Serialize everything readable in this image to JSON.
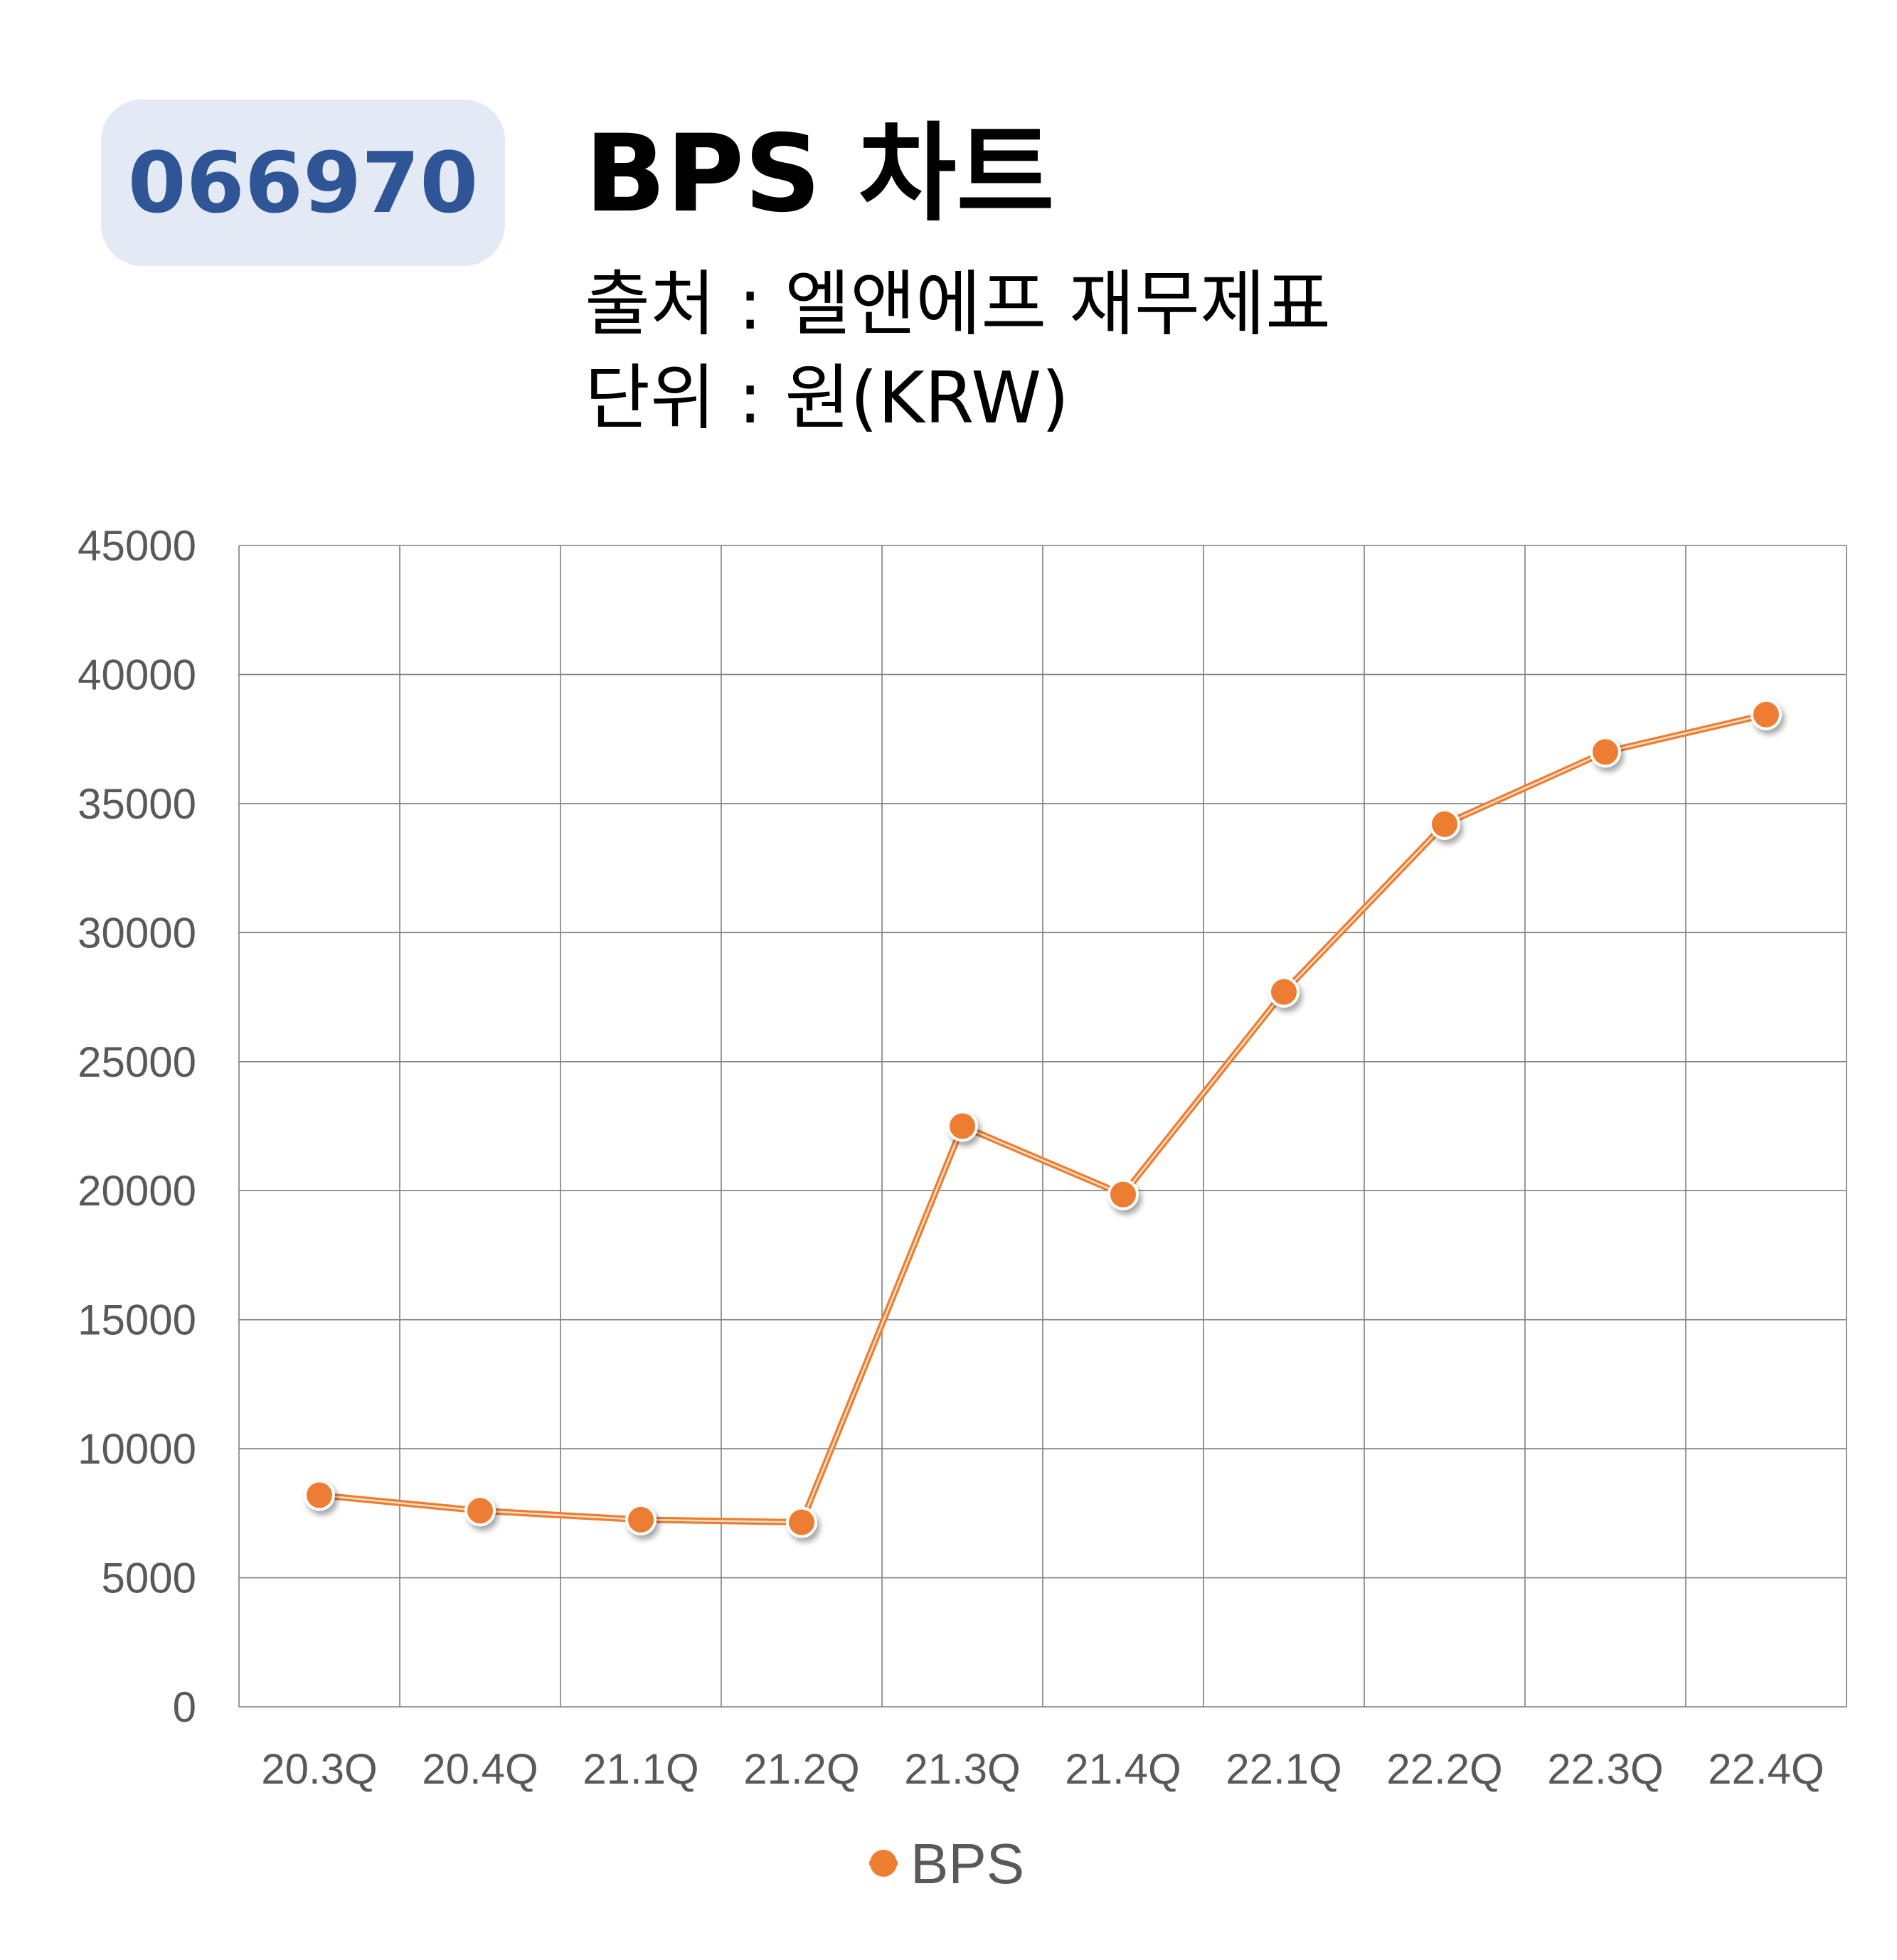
{
  "header": {
    "code": "066970",
    "title": "BPS 차트",
    "source": "출처 : 엘앤에프 재무제표",
    "unit": "단위 : 원(KRW)"
  },
  "colors": {
    "badge_bg": "#e3e9f5",
    "badge_text": "#2f5597",
    "series": "#ed7d31",
    "grid": "#7f7f7f",
    "tick_text": "#595959"
  },
  "chart_data": {
    "type": "line",
    "categories": [
      "20.3Q",
      "20.4Q",
      "21.1Q",
      "21.2Q",
      "21.3Q",
      "21.4Q",
      "22.1Q",
      "22.2Q",
      "22.3Q",
      "22.4Q"
    ],
    "series": [
      {
        "name": "BPS",
        "values": [
          8200,
          7600,
          7250,
          7150,
          22500,
          19850,
          27700,
          34200,
          37000,
          38450
        ]
      }
    ],
    "y_ticks": [
      "0",
      "5000",
      "10000",
      "15000",
      "20000",
      "25000",
      "30000",
      "35000",
      "40000",
      "45000"
    ],
    "ylim": [
      0,
      45000
    ],
    "grid": true,
    "legend_position": "bottom",
    "marker": "circle"
  }
}
